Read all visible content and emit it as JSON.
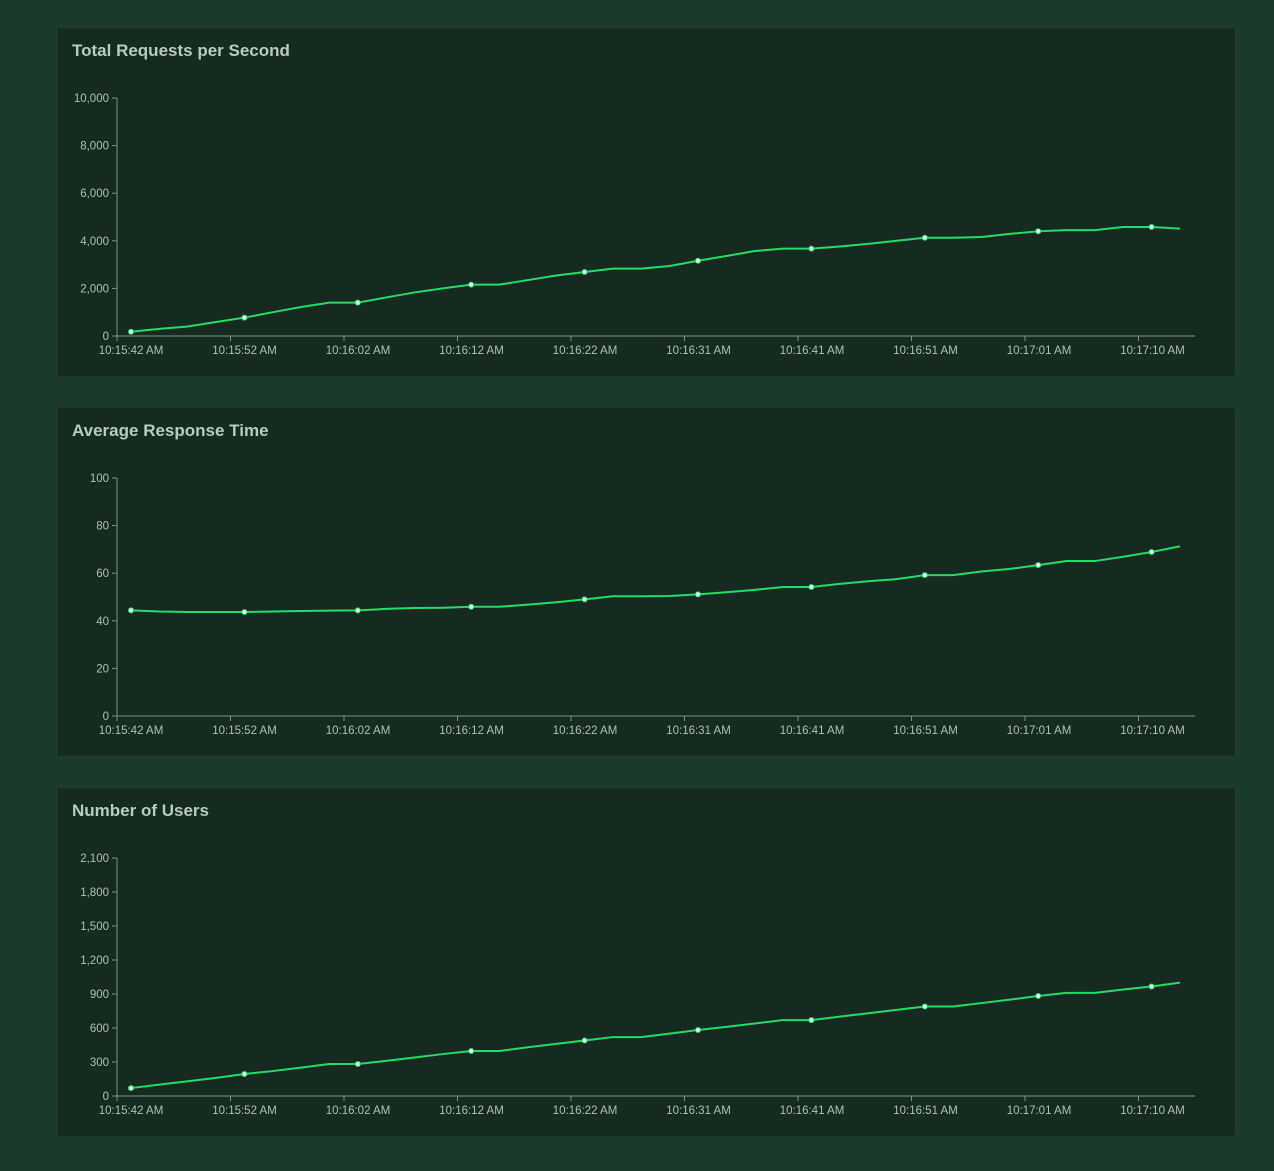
{
  "colors": {
    "background": "#1b3a2d",
    "panel": "#162a22",
    "line": "#22dd66",
    "marker_fill": "#e8fff0",
    "axis": "#7d8f85",
    "text": "#b9cac0"
  },
  "chart_data": [
    {
      "type": "line",
      "title": "Total Requests per Second",
      "ylim": [
        0,
        10000
      ],
      "yticks": [
        "0",
        "2,000",
        "4,000",
        "6,000",
        "8,000",
        "10,000"
      ],
      "ytick_values": [
        0,
        2000,
        4000,
        6000,
        8000,
        10000
      ],
      "xticks": [
        "10:15:42 AM",
        "10:15:52 AM",
        "10:16:02 AM",
        "10:16:12 AM",
        "10:16:22 AM",
        "10:16:31 AM",
        "10:16:41 AM",
        "10:16:51 AM",
        "10:17:01 AM",
        "10:17:10 AM"
      ],
      "grid": false,
      "values": [
        180,
        300,
        400,
        590,
        770,
        1000,
        1220,
        1400,
        1400,
        1620,
        1830,
        2000,
        2160,
        2160,
        2350,
        2540,
        2690,
        2830,
        2830,
        2940,
        3160,
        3360,
        3570,
        3670,
        3670,
        3760,
        3870,
        4000,
        4130,
        4130,
        4160,
        4290,
        4400,
        4450,
        4450,
        4580,
        4580,
        4510
      ]
    },
    {
      "type": "line",
      "title": "Average Response Time",
      "ylim": [
        0,
        100
      ],
      "yticks": [
        "0",
        "20",
        "40",
        "60",
        "80",
        "100"
      ],
      "ytick_values": [
        0,
        20,
        40,
        60,
        80,
        100
      ],
      "xticks": [
        "10:15:42 AM",
        "10:15:52 AM",
        "10:16:02 AM",
        "10:16:12 AM",
        "10:16:22 AM",
        "10:16:31 AM",
        "10:16:41 AM",
        "10:16:51 AM",
        "10:17:01 AM",
        "10:17:10 AM"
      ],
      "grid": false,
      "values": [
        44.4,
        43.9,
        43.7,
        43.7,
        43.7,
        43.9,
        44.1,
        44.3,
        44.4,
        45.0,
        45.4,
        45.5,
        45.9,
        45.9,
        46.8,
        47.8,
        49.0,
        50.3,
        50.3,
        50.4,
        51.1,
        52.0,
        53.0,
        54.2,
        54.2,
        55.5,
        56.6,
        57.5,
        59.2,
        59.2,
        60.7,
        61.8,
        63.4,
        65.1,
        65.1,
        66.9,
        68.9,
        71.3
      ]
    },
    {
      "type": "line",
      "title": "Number of Users",
      "ylim": [
        0,
        2100
      ],
      "yticks": [
        "0",
        "300",
        "600",
        "900",
        "1,200",
        "1,500",
        "1,800",
        "2,100"
      ],
      "ytick_values": [
        0,
        300,
        600,
        900,
        1200,
        1500,
        1800,
        2100
      ],
      "xticks": [
        "10:15:42 AM",
        "10:15:52 AM",
        "10:16:02 AM",
        "10:16:12 AM",
        "10:16:22 AM",
        "10:16:31 AM",
        "10:16:41 AM",
        "10:16:51 AM",
        "10:17:01 AM",
        "10:17:10 AM"
      ],
      "grid": false,
      "values": [
        70,
        100,
        130,
        160,
        194,
        220,
        250,
        282,
        282,
        310,
        340,
        370,
        397,
        397,
        430,
        460,
        490,
        520,
        520,
        550,
        582,
        610,
        640,
        670,
        670,
        700,
        730,
        760,
        790,
        790,
        820,
        850,
        882,
        910,
        910,
        940,
        966,
        1000
      ]
    }
  ]
}
